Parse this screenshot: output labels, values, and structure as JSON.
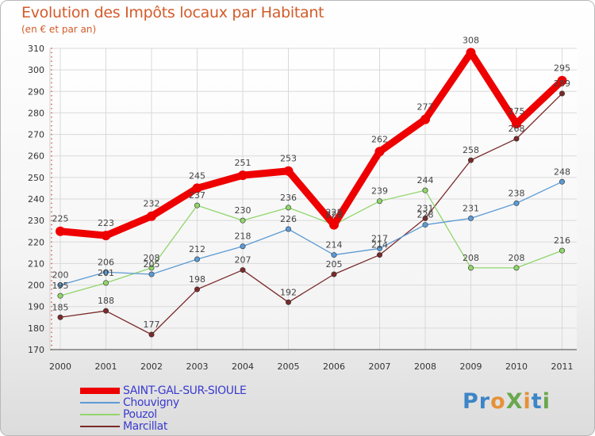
{
  "header": {
    "title": "Evolution des Impôts locaux par Habitant",
    "subtitle": "(en € et par an)"
  },
  "logo": {
    "text": "ProXiti",
    "letters": [
      {
        "ch": "P",
        "color": "#3d85c6"
      },
      {
        "ch": "r",
        "color": "#3d85c6"
      },
      {
        "ch": "o",
        "color": "#e69138"
      },
      {
        "ch": "X",
        "color": "#6aa84f"
      },
      {
        "ch": "i",
        "color": "#e69138"
      },
      {
        "ch": "t",
        "color": "#3d85c6"
      },
      {
        "ch": "i",
        "color": "#6aa84f"
      }
    ]
  },
  "chart_data": {
    "type": "line",
    "title": "Evolution des Impôts locaux par Habitant",
    "subtitle": "(en € et par an)",
    "categories": [
      "2000",
      "2001",
      "2002",
      "2003",
      "2004",
      "2005",
      "2006",
      "2007",
      "2008",
      "2009",
      "2010",
      "2011"
    ],
    "ylim": [
      170,
      310
    ],
    "yticks": [
      170,
      180,
      190,
      200,
      210,
      220,
      230,
      240,
      250,
      260,
      270,
      280,
      290,
      300,
      310
    ],
    "grid": true,
    "legend_position": "bottom-left",
    "series": [
      {
        "name": "SAINT-GAL-SUR-SIOULE",
        "color": "#ee0000",
        "emphasis": true,
        "values": [
          225,
          223,
          232,
          245,
          251,
          253,
          228,
          262,
          277,
          308,
          275,
          295
        ],
        "labels": [
          "225",
          "223",
          "232",
          "245",
          "251",
          "253",
          "228",
          "262",
          "277",
          "308",
          "275",
          "295"
        ]
      },
      {
        "name": "Chouvigny",
        "color": "#5b9bd5",
        "emphasis": false,
        "values": [
          200,
          206,
          205,
          212,
          218,
          226,
          214,
          217,
          228,
          231,
          238,
          248
        ],
        "labels": [
          "200",
          "206",
          "205",
          "212",
          "218",
          "226",
          "214",
          "217",
          "228",
          "231",
          "238",
          "248"
        ]
      },
      {
        "name": "Pouzol",
        "color": "#8fd66b",
        "emphasis": false,
        "values": [
          195,
          201,
          208,
          237,
          230,
          236,
          228,
          239,
          244,
          208,
          208,
          216
        ],
        "labels": [
          "195",
          "201",
          "208",
          "237",
          "230",
          "236",
          "228",
          "239",
          "244",
          "208",
          "208",
          "216"
        ]
      },
      {
        "name": "Marcillat",
        "color": "#7b2a2a",
        "emphasis": false,
        "values": [
          185,
          188,
          177,
          198,
          207,
          192,
          205,
          214,
          231,
          258,
          268,
          289
        ],
        "labels": [
          "185",
          "188",
          "177",
          "198",
          "207",
          "192",
          "205",
          "214",
          "231",
          "258",
          "268",
          "289"
        ]
      }
    ]
  }
}
